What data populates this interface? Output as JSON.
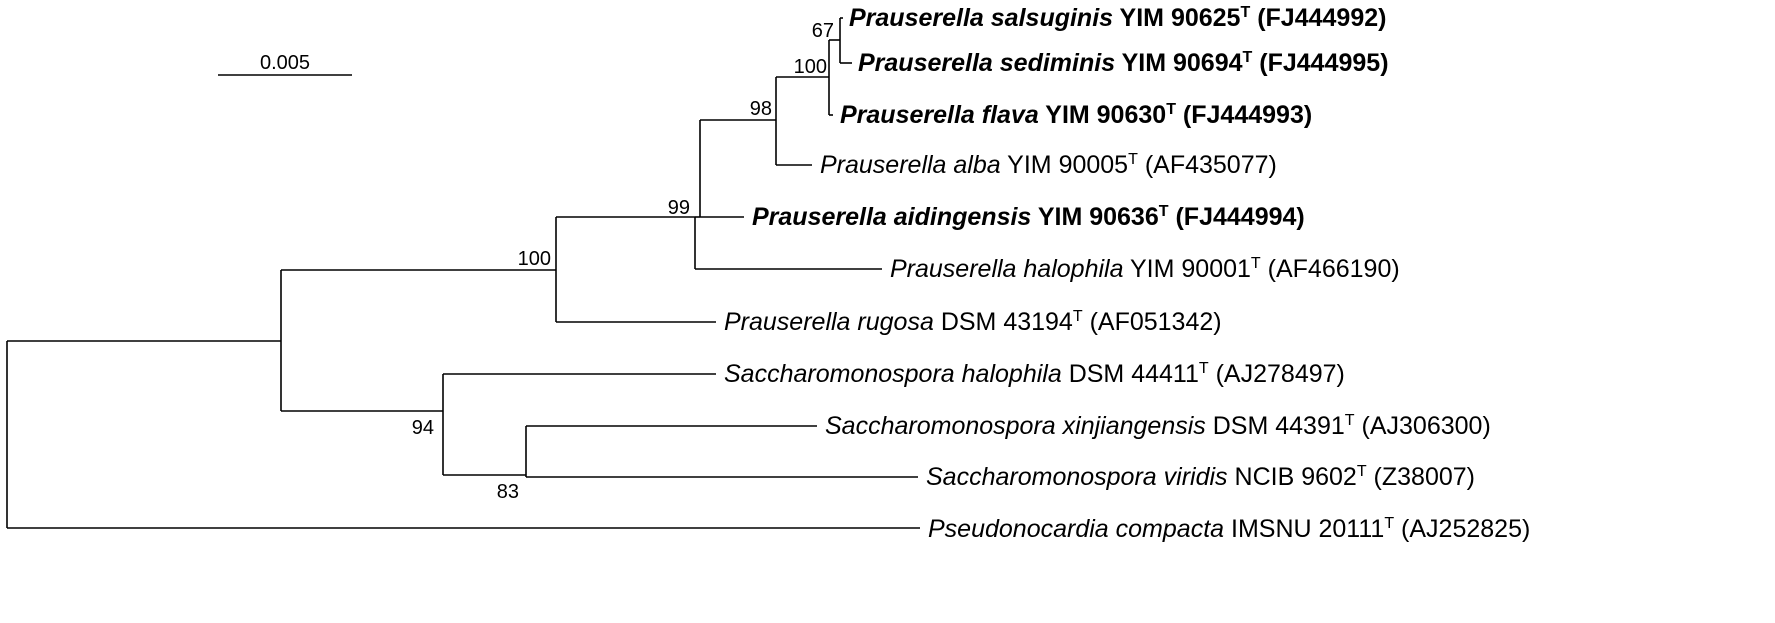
{
  "scale_bar": {
    "label": "0.005"
  },
  "taxa": [
    {
      "id": "salsuginis",
      "genus": "Prauserella",
      "species": "salsuginis",
      "strain": "YIM 90625",
      "type": "T",
      "accession": "(FJ444992)",
      "bold": true
    },
    {
      "id": "sediminis",
      "genus": "Prauserella",
      "species": "sediminis",
      "strain": "YIM 90694",
      "type": "T",
      "accession": "(FJ444995)",
      "bold": true
    },
    {
      "id": "flava",
      "genus": "Prauserella",
      "species": "flava",
      "strain": "YIM 90630",
      "type": "T",
      "accession": "(FJ444993)",
      "bold": true
    },
    {
      "id": "alba",
      "genus": "Prauserella",
      "species": "alba",
      "strain": "YIM 90005",
      "type": "T",
      "accession": "(AF435077)",
      "bold": false
    },
    {
      "id": "aidingensis",
      "genus": "Prauserella",
      "species": "aidingensis",
      "strain": "YIM 90636",
      "type": "T",
      "accession": "(FJ444994)",
      "bold": true
    },
    {
      "id": "halophila-p",
      "genus": "Prauserella",
      "species": "halophila",
      "strain": "YIM 90001",
      "type": "T",
      "accession": "(AF466190)",
      "bold": false
    },
    {
      "id": "rugosa",
      "genus": "Prauserella",
      "species": "rugosa",
      "strain": "DSM 43194",
      "type": "T",
      "accession": "(AF051342)",
      "bold": false
    },
    {
      "id": "halophila-s",
      "genus": "Saccharomonospora",
      "species": "halophila",
      "strain": "DSM 44411",
      "type": "T",
      "accession": "(AJ278497)",
      "bold": false
    },
    {
      "id": "xinjiangensis",
      "genus": "Saccharomonospora",
      "species": "xinjiangensis",
      "strain": "DSM 44391",
      "type": "T",
      "accession": "(AJ306300)",
      "bold": false
    },
    {
      "id": "viridis",
      "genus": "Saccharomonospora",
      "species": "viridis",
      "strain": "NCIB 9602",
      "type": "T",
      "accession": "(Z38007)",
      "bold": false
    },
    {
      "id": "compacta",
      "genus": "Pseudonocardia",
      "species": "compacta",
      "strain": "IMSNU 20111",
      "type": "T",
      "accession": "(AJ252825)",
      "bold": false
    }
  ],
  "bootstrap": {
    "salsuginis_sediminis": "67",
    "flava_clade": "100",
    "alba_clade": "98",
    "aidingensis_clade": "99",
    "prauserella": "100",
    "saccharomonospora": "94",
    "xinjiangensis_viridis": "83"
  }
}
